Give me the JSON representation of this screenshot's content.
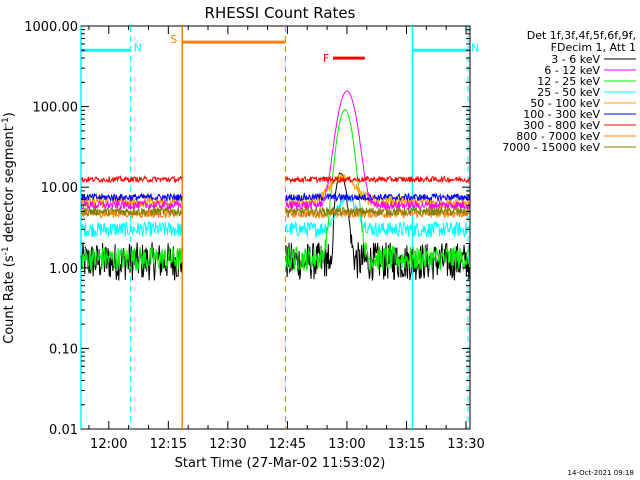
{
  "chart_data": {
    "type": "line",
    "title": "RHESSI Count Rates",
    "xlabel": "Start Time (27-Mar-02 11:53:02)",
    "ylabel_parts": [
      "Count Rate (s",
      "-1",
      " detector segment",
      "-1",
      ")"
    ],
    "timestamp": "14-Oct-2021 09:18",
    "y_scale": "log",
    "ylim": [
      0.01,
      1000
    ],
    "xlim_minutes_after_1153": [
      0,
      98
    ],
    "x_ticks": [
      {
        "label": "12:00",
        "t": 7
      },
      {
        "label": "12:15",
        "t": 22
      },
      {
        "label": "12:30",
        "t": 37
      },
      {
        "label": "12:45",
        "t": 52
      },
      {
        "label": "13:00",
        "t": 67
      },
      {
        "label": "13:15",
        "t": 82
      },
      {
        "label": "13:30",
        "t": 97
      }
    ],
    "y_ticks": [
      {
        "label": "1000.00",
        "v": 1000
      },
      {
        "label": "100.00",
        "v": 100
      },
      {
        "label": "10.00",
        "v": 10
      },
      {
        "label": "1.00",
        "v": 1
      },
      {
        "label": "0.10",
        "v": 0.1
      },
      {
        "label": "0.01",
        "v": 0.01
      }
    ],
    "legend": {
      "position": "right",
      "header": [
        "Det 1f,3f,4f,5f,6f,9f,",
        "FDecim 1, Att 1"
      ]
    },
    "gaps": [
      [
        25.5,
        51.5
      ]
    ],
    "series": [
      {
        "name": "3 - 6 keV",
        "color": "#000000",
        "base": 1.2,
        "noise": 0.55,
        "peak": 14,
        "peak_t": 65.5,
        "peak_w": 1.6,
        "dip_t": 63,
        "dip": 0.5
      },
      {
        "name": "6 - 12 keV",
        "color": "#ff00ff",
        "base": 6.0,
        "noise": 0.12,
        "peak": 150,
        "peak_t": 67,
        "peak_w": 2.6
      },
      {
        "name": "12 - 25 keV",
        "color": "#00ee00",
        "base": 1.3,
        "noise": 0.35,
        "peak": 90,
        "peak_t": 66.5,
        "peak_w": 2.2
      },
      {
        "name": "25 - 50 keV",
        "color": "#00ffff",
        "base": 3.0,
        "noise": 0.22,
        "peak": 4.5,
        "peak_t": 67,
        "peak_w": 3
      },
      {
        "name": "50 - 100 keV",
        "color": "#ffa500",
        "base": 6.5,
        "noise": 0.18,
        "peak": 7,
        "peak_t": 66,
        "peak_w": 4
      },
      {
        "name": "100 - 300 keV",
        "color": "#0000ff",
        "base": 7.5,
        "noise": 0.1,
        "peak": 0,
        "peak_t": 67,
        "peak_w": 3
      },
      {
        "name": "300 - 800 keV",
        "color": "#ff0000",
        "base": 12.5,
        "noise": 0.08,
        "peak": 0,
        "peak_t": 67,
        "peak_w": 3
      },
      {
        "name": "800 - 7000 keV",
        "color": "#ff7f00",
        "base": 4.7,
        "noise": 0.12,
        "peak": 0,
        "peak_t": 67,
        "peak_w": 3
      },
      {
        "name": "7000 - 15000 keV",
        "color": "#808000",
        "base": 5.0,
        "noise": 0.12,
        "peak": 0,
        "peak_t": 67,
        "peak_w": 3
      }
    ],
    "flags": [
      {
        "label": "N",
        "color": "#00ffff",
        "style": "solid-dashed",
        "t_start": 0,
        "t_end": 12.5,
        "level": 500
      },
      {
        "label": "N",
        "color": "#00ffff",
        "style": "solid-dashed",
        "t_start": 83.5,
        "t_end": 97.5,
        "level": 500
      },
      {
        "label": "S",
        "color": "#ff7f00",
        "style": "solid-dashed",
        "t_start": 25.5,
        "t_end": 51.5,
        "level": 630
      },
      {
        "label": "F",
        "color": "#ff0000",
        "style": "bar",
        "t_start": 63.5,
        "t_end": 71.5,
        "level": 400
      }
    ]
  }
}
